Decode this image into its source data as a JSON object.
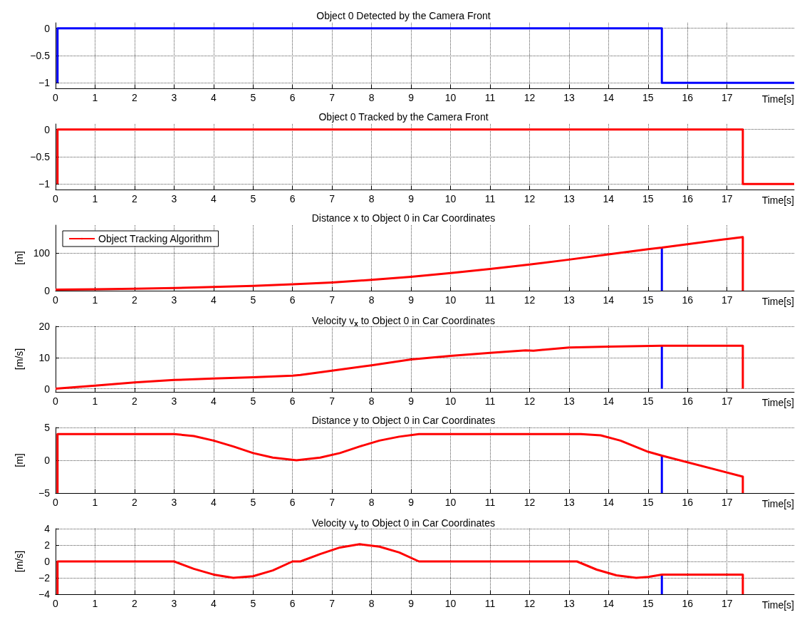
{
  "chart_data": [
    {
      "type": "line",
      "title": "Object 0 Detected by the Camera Front",
      "xlabel": "Time[s]",
      "xlim": [
        0,
        18.7
      ],
      "xticks": [
        0,
        1,
        2,
        3,
        4,
        5,
        6,
        7,
        8,
        9,
        10,
        11,
        12,
        13,
        14,
        15,
        16,
        17
      ],
      "ylim": [
        -1.1,
        0.1
      ],
      "yticks": [
        -1,
        -0.5,
        0
      ],
      "grid": true,
      "series": [
        {
          "color": "#0000ff",
          "x": [
            0.05,
            0.05,
            15.35,
            15.35,
            18.7
          ],
          "values": [
            -1,
            0,
            0,
            -1,
            -1
          ]
        }
      ]
    },
    {
      "type": "line",
      "title": "Object 0 Tracked by the Camera Front",
      "xlabel": "Time[s]",
      "xlim": [
        0,
        18.7
      ],
      "xticks": [
        0,
        1,
        2,
        3,
        4,
        5,
        6,
        7,
        8,
        9,
        10,
        11,
        12,
        13,
        14,
        15,
        16,
        17
      ],
      "ylim": [
        -1.1,
        0.1
      ],
      "yticks": [
        -1,
        -0.5,
        0
      ],
      "grid": true,
      "series": [
        {
          "color": "#ff0000",
          "x": [
            0.05,
            0.05,
            17.4,
            17.4,
            18.7
          ],
          "values": [
            -1,
            0,
            0,
            -1,
            -1
          ]
        }
      ]
    },
    {
      "type": "line",
      "title": "Distance x to Object 0 in Car Coordinates",
      "xlabel": "Time[s]",
      "ylabel": "[m]",
      "xlim": [
        0,
        18.7
      ],
      "xticks": [
        0,
        1,
        2,
        3,
        4,
        5,
        6,
        7,
        8,
        9,
        10,
        11,
        12,
        13,
        14,
        15,
        16,
        17
      ],
      "ylim": [
        0,
        175
      ],
      "yticks": [
        0,
        100
      ],
      "grid": true,
      "legend": "top left",
      "series": [
        {
          "color": "#0000ff",
          "x": [
            15.35,
            15.35
          ],
          "values": [
            115,
            0
          ]
        },
        {
          "name": "Object Tracking Algorithm",
          "color": "#ff0000",
          "x": [
            0,
            1,
            2,
            3,
            4,
            5,
            6,
            7,
            8,
            9,
            10,
            11,
            12,
            13,
            14,
            15,
            15.35,
            16,
            17,
            17.4,
            17.4
          ],
          "values": [
            3,
            4,
            5,
            7,
            10,
            13,
            17,
            22,
            29,
            37,
            47,
            58,
            70,
            83,
            97,
            111,
            115,
            124,
            138,
            143,
            0
          ]
        }
      ]
    },
    {
      "type": "line",
      "title": "Velocity v$_{x}$ to Object 0 in Car Coordinates",
      "xlabel": "Time[s]",
      "ylabel": "[m/s]",
      "xlim": [
        0,
        18.7
      ],
      "xticks": [
        0,
        1,
        2,
        3,
        4,
        5,
        6,
        7,
        8,
        9,
        10,
        11,
        12,
        13,
        14,
        15,
        16,
        17
      ],
      "ylim": [
        -1,
        20
      ],
      "yticks": [
        0,
        10,
        20
      ],
      "grid": true,
      "series": [
        {
          "color": "#0000ff",
          "x": [
            15.35,
            15.35
          ],
          "values": [
            13.8,
            0
          ]
        },
        {
          "color": "#ff0000",
          "x": [
            0,
            1,
            2,
            3,
            4,
            5,
            6,
            6.2,
            7,
            8,
            9,
            10,
            11,
            11.9,
            12.1,
            13,
            14,
            15.35,
            17.4,
            17.4
          ],
          "values": [
            0,
            1,
            2,
            2.8,
            3.3,
            3.7,
            4.2,
            4.4,
            5.8,
            7.5,
            9.4,
            10.5,
            11.5,
            12.3,
            12.2,
            13.2,
            13.5,
            13.8,
            13.8,
            0
          ]
        }
      ]
    },
    {
      "type": "line",
      "title": "Distance y to Object 0 in Car Coordinates",
      "xlabel": "Time[s]",
      "ylabel": "[m]",
      "xlim": [
        0,
        18.7
      ],
      "xticks": [
        0,
        1,
        2,
        3,
        4,
        5,
        6,
        7,
        8,
        9,
        10,
        11,
        12,
        13,
        14,
        15,
        16,
        17
      ],
      "ylim": [
        -5,
        5
      ],
      "yticks": [
        -5,
        0,
        5
      ],
      "grid": true,
      "series": [
        {
          "color": "#0000ff",
          "x": [
            15.35,
            15.35
          ],
          "values": [
            0.7,
            -5
          ]
        },
        {
          "color": "#ff0000",
          "x": [
            0.05,
            0.05,
            3,
            3.5,
            4,
            4.5,
            5,
            5.5,
            6.1,
            6.7,
            7.2,
            7.7,
            8.2,
            8.7,
            9.2,
            13.3,
            13.8,
            14.3,
            15,
            15.35,
            17.4,
            17.4
          ],
          "values": [
            -5,
            4,
            4,
            3.7,
            3,
            2.1,
            1.1,
            0.4,
            0,
            0.4,
            1.1,
            2.1,
            3,
            3.6,
            4,
            4,
            3.8,
            3,
            1.3,
            0.7,
            -2.5,
            -5
          ]
        }
      ]
    },
    {
      "type": "line",
      "title": "Velocity v$_{y}$ to Object 0 in Car Coordinates",
      "xlabel": "Time[s]",
      "ylabel": "[m/s]",
      "xlim": [
        0,
        18.7
      ],
      "xticks": [
        0,
        1,
        2,
        3,
        4,
        5,
        6,
        7,
        8,
        9,
        10,
        11,
        12,
        13,
        14,
        15,
        16,
        17
      ],
      "ylim": [
        -4,
        4
      ],
      "yticks": [
        -4,
        -2,
        0,
        2,
        4
      ],
      "grid": true,
      "series": [
        {
          "color": "#0000ff",
          "x": [
            15.35,
            15.35
          ],
          "values": [
            -1.6,
            -4
          ]
        },
        {
          "color": "#ff0000",
          "x": [
            0.05,
            0.05,
            3,
            3.5,
            4,
            4.5,
            5,
            5.5,
            6,
            6.2,
            6.7,
            7.2,
            7.7,
            8.2,
            8.7,
            9.2,
            13.2,
            13.7,
            14.2,
            14.7,
            15,
            15.35,
            17.4,
            17.4
          ],
          "values": [
            -4,
            0,
            0,
            -0.9,
            -1.6,
            -2,
            -1.8,
            -1.1,
            0,
            0,
            0.9,
            1.7,
            2.1,
            1.8,
            1.1,
            0,
            0,
            -1,
            -1.7,
            -2,
            -1.9,
            -1.6,
            -1.6,
            -4
          ]
        }
      ]
    }
  ]
}
